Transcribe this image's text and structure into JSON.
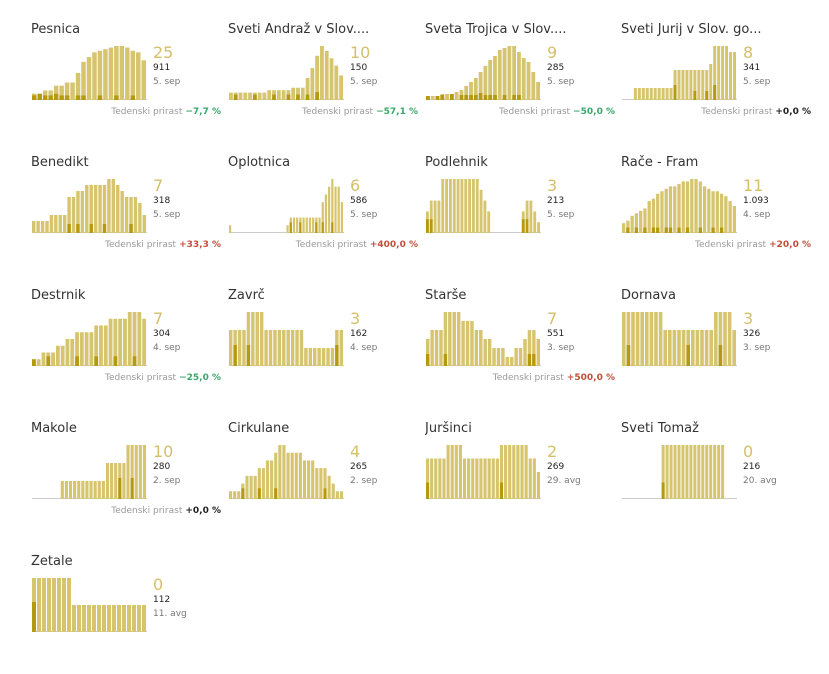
{
  "growth_label": "Tedenski prirast",
  "colors": {
    "bar": "#d6c46e",
    "bar_dark": "#b59a10",
    "baseline": "#cccccc",
    "down": "#3aa86b",
    "up": "#c0503c",
    "flat": "#222222"
  },
  "chart_data": [
    {
      "type": "bar",
      "name": "Pesnica",
      "active": "25",
      "cumulative": "911",
      "date": "5. sep",
      "growth": "−7,7 %",
      "trend": "down",
      "values": [
        4,
        4,
        6,
        6,
        9,
        9,
        11,
        11,
        17,
        24,
        27,
        30,
        31,
        32,
        33,
        34,
        34,
        33,
        31,
        30,
        25
      ],
      "highlight": [
        1,
        2,
        1,
        1,
        2,
        1,
        1,
        0,
        1,
        1,
        0,
        0,
        1,
        0,
        0,
        1,
        0,
        0,
        1,
        0,
        0
      ]
    },
    {
      "type": "bar",
      "name": "Sveti Andraž v Slov....",
      "active": "10",
      "cumulative": "150",
      "date": "5. sep",
      "growth": "−57,1 %",
      "trend": "down",
      "values": [
        3,
        3,
        3,
        3,
        3,
        3,
        3,
        3,
        4,
        4,
        4,
        4,
        4,
        5,
        5,
        5,
        9,
        13,
        18,
        22,
        20,
        17,
        14,
        10
      ],
      "highlight": [
        0,
        1,
        0,
        0,
        0,
        1,
        0,
        0,
        0,
        1,
        0,
        0,
        1,
        0,
        1,
        0,
        1,
        0,
        2,
        0,
        0,
        0,
        0,
        0
      ]
    },
    {
      "type": "bar",
      "name": "Sveta Trojica v Slov....",
      "active": "9",
      "cumulative": "285",
      "date": "5. sep",
      "growth": "−50,0 %",
      "trend": "down",
      "values": [
        2,
        2,
        2,
        3,
        3,
        3,
        4,
        5,
        7,
        9,
        11,
        14,
        17,
        20,
        22,
        25,
        26,
        27,
        27,
        24,
        21,
        19,
        14,
        9
      ],
      "highlight": [
        1,
        0,
        1,
        1,
        0,
        2,
        0,
        1,
        1,
        1,
        1,
        2,
        1,
        1,
        1,
        0,
        1,
        0,
        1,
        1,
        0,
        0,
        0,
        0
      ]
    },
    {
      "type": "bar",
      "name": "Sveti Jurij v Slov. go...",
      "active": "8",
      "cumulative": "341",
      "date": "5. sep",
      "growth": "+0,0 %",
      "trend": "flat",
      "values": [
        0,
        0,
        0,
        2,
        2,
        2,
        2,
        2,
        2,
        2,
        2,
        2,
        2,
        5,
        5,
        5,
        5,
        5,
        5,
        5,
        5,
        5,
        6,
        9,
        9,
        9,
        9,
        8,
        8
      ],
      "highlight": [
        0,
        0,
        0,
        0,
        0,
        0,
        0,
        0,
        0,
        0,
        0,
        0,
        0,
        2,
        0,
        0,
        0,
        0,
        1,
        0,
        0,
        1,
        0,
        2,
        0,
        0,
        0,
        0,
        0
      ]
    },
    {
      "type": "bar",
      "name": "Benedikt",
      "active": "7",
      "cumulative": "318",
      "date": "5. sep",
      "growth": "+33,3 %",
      "trend": "up",
      "values": [
        2,
        2,
        2,
        2,
        3,
        3,
        3,
        3,
        6,
        6,
        7,
        7,
        8,
        8,
        8,
        8,
        8,
        9,
        9,
        8,
        7,
        6,
        6,
        6,
        5,
        3
      ],
      "highlight": [
        0,
        0,
        0,
        0,
        0,
        0,
        0,
        0,
        1,
        0,
        1,
        0,
        0,
        1,
        0,
        0,
        1,
        0,
        0,
        0,
        0,
        0,
        1,
        0,
        0,
        0
      ]
    },
    {
      "type": "bar",
      "name": "Oplotnica",
      "active": "6",
      "cumulative": "586",
      "date": "5. sep",
      "growth": "+400,0 %",
      "trend": "up",
      "values": [
        1,
        0,
        0,
        0,
        0,
        0,
        0,
        0,
        0,
        0,
        0,
        0,
        0,
        0,
        0,
        0,
        0,
        0,
        1,
        2,
        2,
        2,
        2,
        2,
        2,
        2,
        2,
        2,
        2,
        4,
        5,
        6,
        7,
        6,
        6,
        4
      ],
      "highlight": [
        0,
        0,
        0,
        0,
        0,
        0,
        0,
        0,
        0,
        0,
        0,
        0,
        0,
        0,
        0,
        0,
        0,
        0,
        0,
        1,
        0,
        0,
        1,
        0,
        0,
        0,
        0,
        1,
        0,
        1,
        0,
        0,
        1,
        0,
        0,
        0
      ]
    },
    {
      "type": "bar",
      "name": "Podlehnik",
      "active": "3",
      "cumulative": "213",
      "date": "5. sep",
      "growth": "",
      "trend": "",
      "values": [
        2,
        3,
        3,
        3,
        5,
        5,
        5,
        5,
        5,
        5,
        5,
        5,
        5,
        5,
        4,
        3,
        2,
        0,
        0,
        0,
        0,
        0,
        0,
        0,
        0,
        2,
        3,
        3,
        2,
        1
      ],
      "highlight": [
        1,
        1,
        0,
        0,
        0,
        0,
        0,
        0,
        0,
        0,
        0,
        0,
        0,
        0,
        0,
        0,
        0,
        0,
        0,
        0,
        0,
        0,
        0,
        0,
        0,
        1,
        1,
        0,
        0,
        0
      ]
    },
    {
      "type": "bar",
      "name": "Rače - Fram",
      "active": "11",
      "cumulative": "1.093",
      "date": "4. sep",
      "growth": "+20,0 %",
      "trend": "up",
      "values": [
        4,
        5,
        7,
        8,
        9,
        10,
        13,
        14,
        16,
        17,
        18,
        19,
        19,
        20,
        21,
        21,
        22,
        22,
        21,
        19,
        18,
        17,
        17,
        16,
        15,
        13,
        11
      ],
      "highlight": [
        0,
        1,
        0,
        1,
        0,
        1,
        0,
        1,
        1,
        0,
        1,
        1,
        0,
        1,
        0,
        1,
        0,
        0,
        1,
        0,
        0,
        1,
        0,
        1,
        0,
        0,
        0
      ]
    },
    {
      "type": "bar",
      "name": "Destrnik",
      "active": "7",
      "cumulative": "304",
      "date": "4. sep",
      "growth": "−25,0 %",
      "trend": "down",
      "values": [
        1,
        1,
        2,
        2,
        2,
        3,
        3,
        4,
        4,
        5,
        5,
        5,
        5,
        6,
        6,
        6,
        7,
        7,
        7,
        7,
        8,
        8,
        8,
        7
      ],
      "highlight": [
        1,
        0,
        0,
        1,
        0,
        0,
        0,
        0,
        0,
        1,
        0,
        0,
        0,
        1,
        0,
        0,
        0,
        1,
        0,
        0,
        0,
        1,
        0,
        0
      ]
    },
    {
      "type": "bar",
      "name": "Zavrč",
      "active": "3",
      "cumulative": "162",
      "date": "4. sep",
      "growth": "",
      "trend": "",
      "values": [
        2,
        2,
        2,
        2,
        3,
        3,
        3,
        3,
        2,
        2,
        2,
        2,
        2,
        2,
        2,
        2,
        2,
        1,
        1,
        1,
        1,
        1,
        1,
        1,
        2,
        2
      ],
      "highlight": [
        0,
        1,
        0,
        0,
        1,
        0,
        0,
        0,
        0,
        0,
        0,
        0,
        0,
        0,
        0,
        0,
        0,
        0,
        0,
        0,
        0,
        0,
        0,
        0,
        1,
        0
      ]
    },
    {
      "type": "bar",
      "name": "Starše",
      "active": "7",
      "cumulative": "551",
      "date": "3. sep",
      "growth": "+500,0 %",
      "trend": "up",
      "values": [
        3,
        4,
        4,
        4,
        6,
        6,
        6,
        6,
        5,
        5,
        5,
        4,
        4,
        3,
        3,
        2,
        2,
        2,
        1,
        1,
        2,
        2,
        3,
        4,
        4,
        3
      ],
      "highlight": [
        1,
        0,
        0,
        0,
        1,
        0,
        0,
        0,
        0,
        0,
        0,
        0,
        0,
        0,
        0,
        0,
        0,
        0,
        0,
        0,
        0,
        0,
        0,
        1,
        1,
        0
      ]
    },
    {
      "type": "bar",
      "name": "Dornava",
      "active": "3",
      "cumulative": "326",
      "date": "3. sep",
      "growth": "",
      "trend": "",
      "values": [
        3,
        3,
        3,
        3,
        3,
        3,
        3,
        3,
        3,
        2,
        2,
        2,
        2,
        2,
        2,
        2,
        2,
        2,
        2,
        2,
        3,
        3,
        3,
        3,
        2
      ],
      "highlight": [
        0,
        1,
        0,
        0,
        0,
        0,
        0,
        0,
        0,
        0,
        0,
        0,
        0,
        0,
        1,
        0,
        0,
        0,
        0,
        0,
        0,
        1,
        0,
        0,
        0
      ]
    },
    {
      "type": "bar",
      "name": "Makole",
      "active": "10",
      "cumulative": "280",
      "date": "2. sep",
      "growth": "+0,0 %",
      "trend": "flat",
      "values": [
        0,
        0,
        0,
        0,
        0,
        0,
        0,
        1,
        1,
        1,
        1,
        1,
        1,
        1,
        1,
        1,
        1,
        1,
        2,
        2,
        2,
        2,
        2,
        3,
        3,
        3,
        3,
        3
      ],
      "highlight": [
        0,
        0,
        0,
        0,
        0,
        0,
        0,
        0,
        0,
        0,
        0,
        0,
        0,
        0,
        0,
        0,
        0,
        0,
        0,
        0,
        0,
        1,
        0,
        0,
        1,
        0,
        0,
        0
      ]
    },
    {
      "type": "bar",
      "name": "Cirkulane",
      "active": "4",
      "cumulative": "265",
      "date": "2. sep",
      "growth": "",
      "trend": "",
      "values": [
        1,
        1,
        1,
        2,
        3,
        3,
        3,
        4,
        4,
        5,
        5,
        6,
        7,
        7,
        6,
        6,
        6,
        6,
        5,
        5,
        5,
        4,
        4,
        4,
        3,
        2,
        1,
        1
      ],
      "highlight": [
        0,
        0,
        0,
        1,
        0,
        0,
        0,
        1,
        0,
        0,
        0,
        1,
        0,
        0,
        0,
        0,
        0,
        0,
        0,
        0,
        0,
        0,
        0,
        1,
        0,
        0,
        0,
        0
      ]
    },
    {
      "type": "bar",
      "name": "Juršinci",
      "active": "2",
      "cumulative": "269",
      "date": "29. avg",
      "growth": "",
      "trend": "",
      "values": [
        3,
        3,
        3,
        3,
        3,
        4,
        4,
        4,
        4,
        3,
        3,
        3,
        3,
        3,
        3,
        3,
        3,
        3,
        4,
        4,
        4,
        4,
        4,
        4,
        4,
        3,
        3,
        2
      ],
      "highlight": [
        1,
        0,
        0,
        0,
        0,
        0,
        0,
        0,
        0,
        0,
        0,
        0,
        0,
        0,
        0,
        0,
        0,
        0,
        1,
        0,
        0,
        0,
        0,
        0,
        0,
        0,
        0,
        0
      ]
    },
    {
      "type": "bar",
      "name": "Sveti Tomaž",
      "active": "0",
      "cumulative": "216",
      "date": "20. avg",
      "growth": "",
      "trend": "",
      "values": [
        0,
        0,
        0,
        0,
        0,
        0,
        0,
        0,
        0,
        0,
        4,
        4,
        4,
        4,
        4,
        4,
        4,
        4,
        4,
        4,
        4,
        4,
        4,
        4,
        4,
        4,
        0,
        0,
        0
      ],
      "highlight": [
        0,
        0,
        0,
        0,
        0,
        0,
        0,
        0,
        0,
        0,
        1,
        0,
        0,
        0,
        0,
        0,
        0,
        0,
        0,
        0,
        0,
        0,
        0,
        0,
        0,
        0,
        0,
        0,
        0
      ]
    },
    {
      "type": "bar",
      "name": "Žetale",
      "active": "0",
      "cumulative": "112",
      "date": "11. avg",
      "growth": "",
      "trend": "",
      "values": [
        2,
        2,
        2,
        2,
        2,
        2,
        2,
        2,
        1,
        1,
        1,
        1,
        1,
        1,
        1,
        1,
        1,
        1,
        1,
        1,
        1,
        1,
        1
      ],
      "highlight": [
        1,
        0,
        0,
        0,
        0,
        0,
        0,
        0,
        0,
        0,
        0,
        0,
        0,
        0,
        0,
        0,
        0,
        0,
        0,
        0,
        0,
        0,
        0
      ]
    }
  ]
}
